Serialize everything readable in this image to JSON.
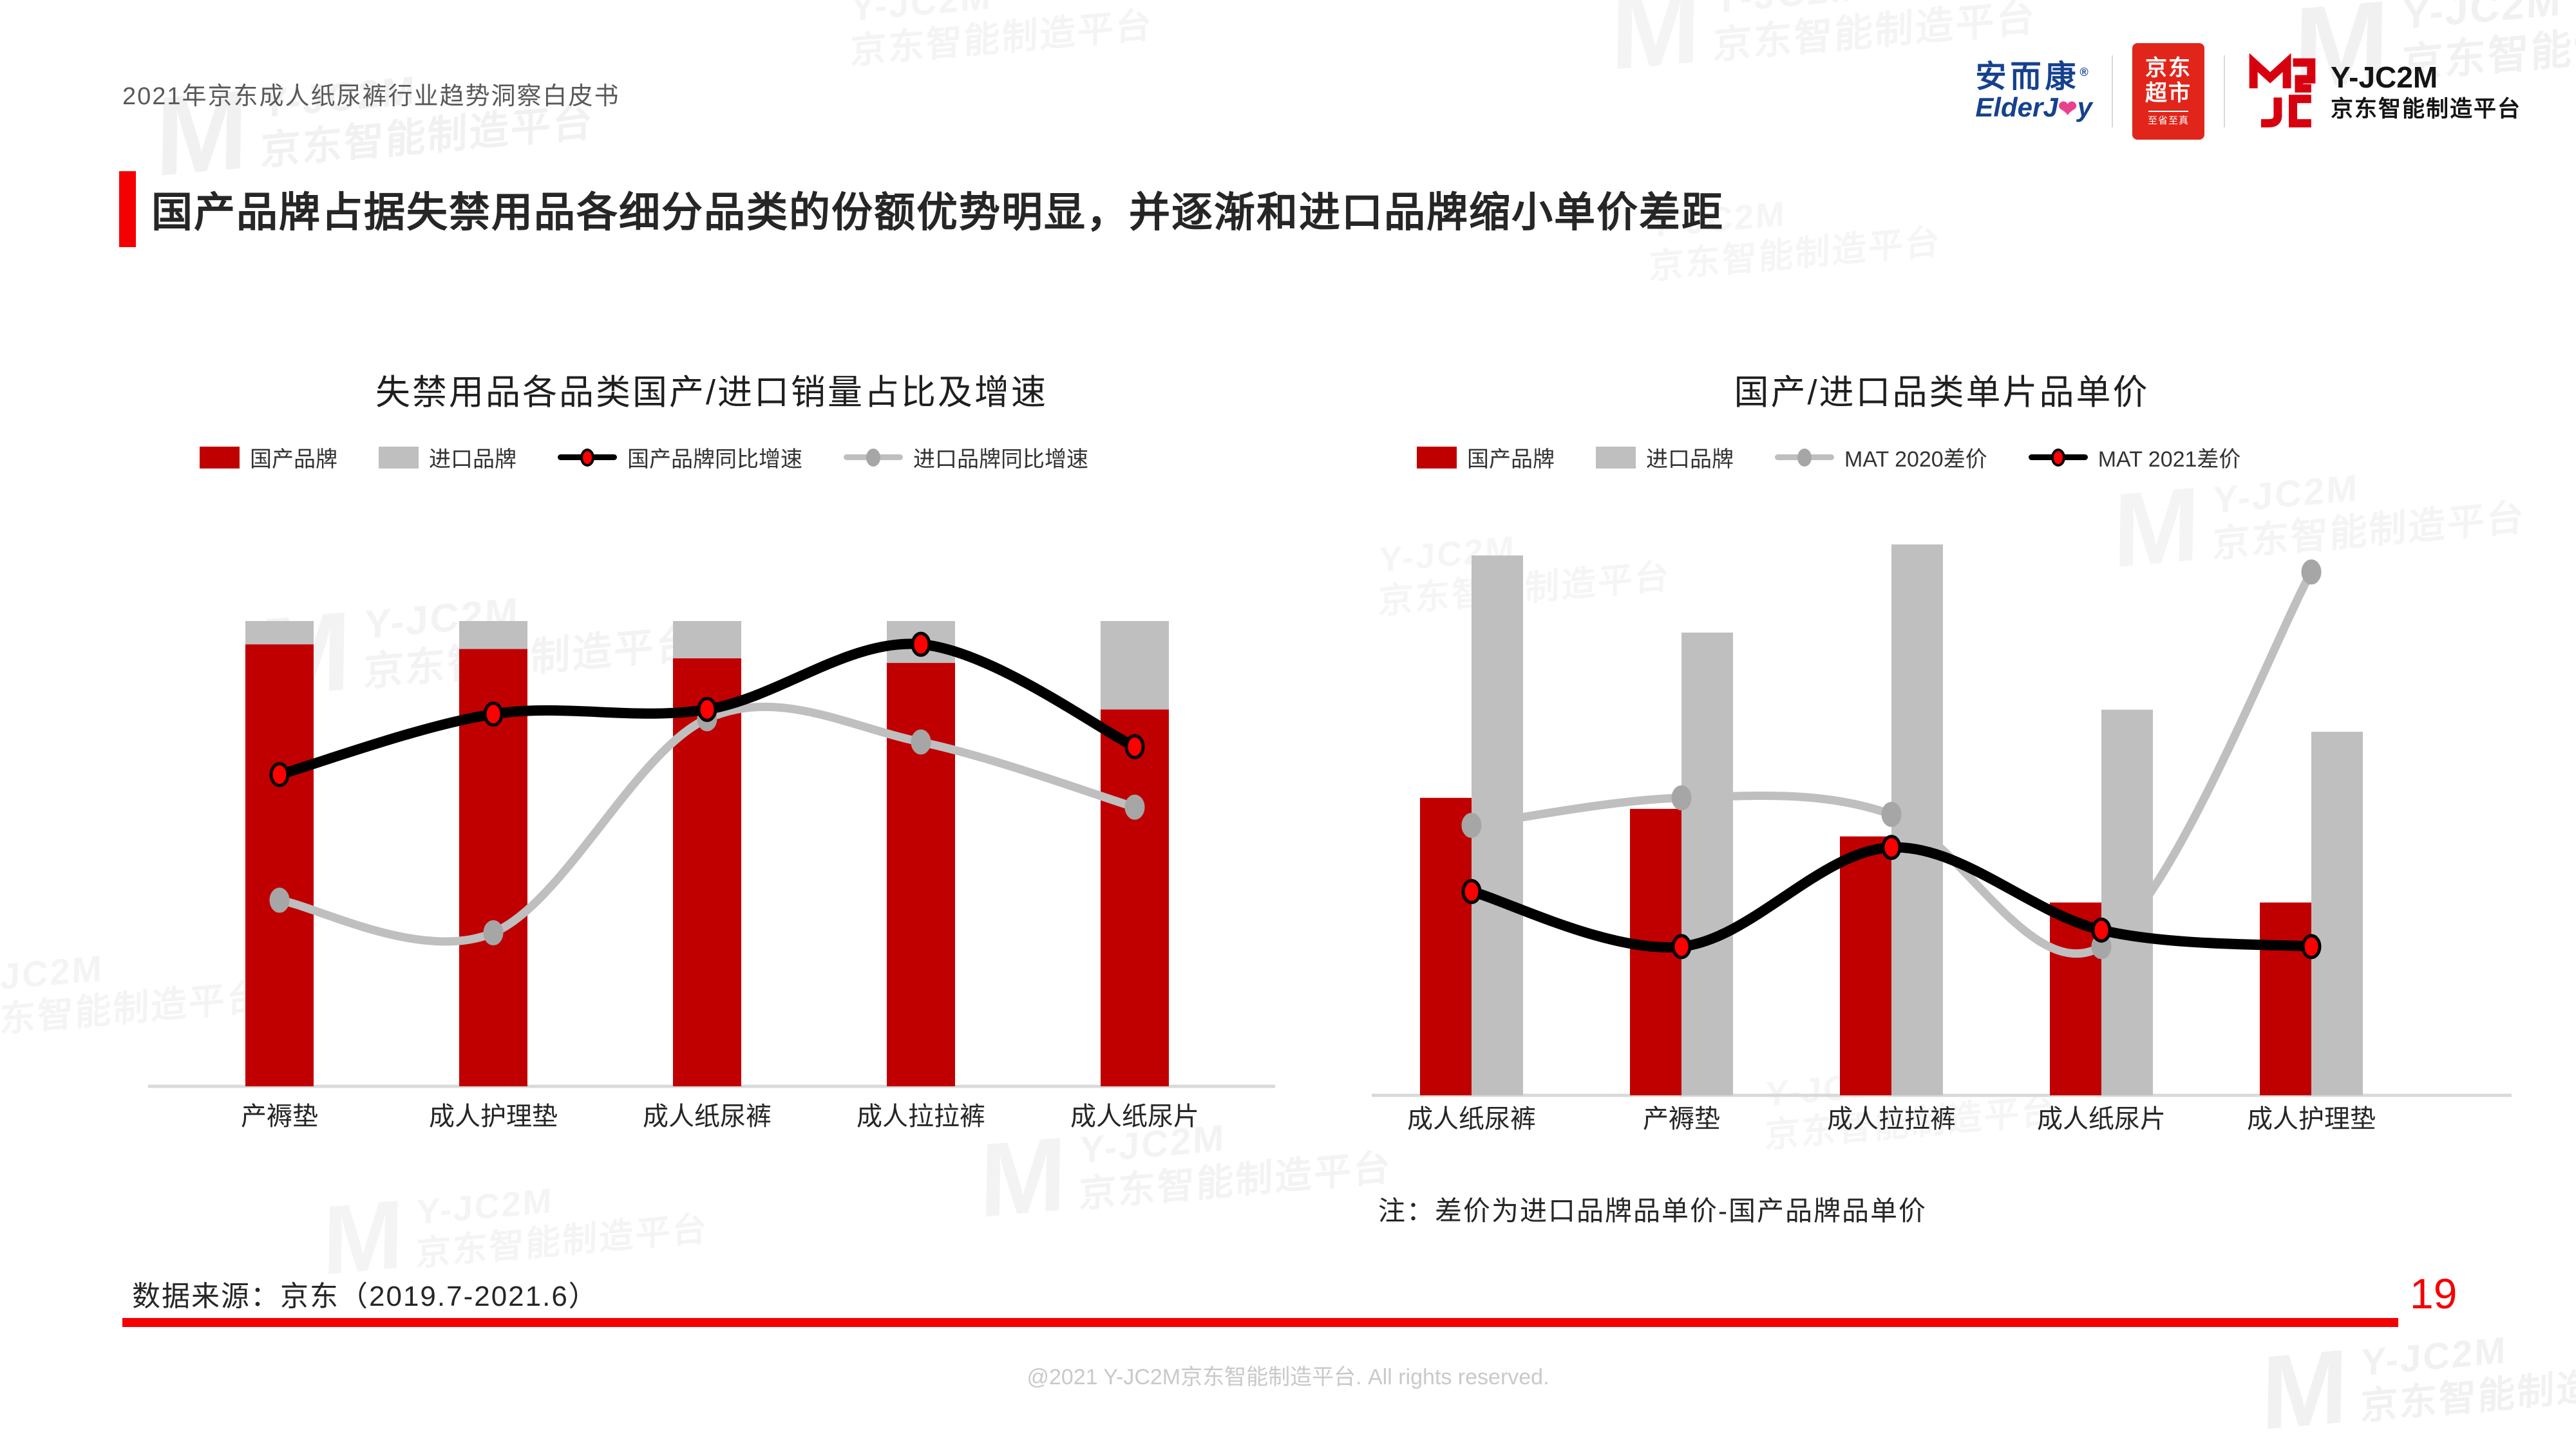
{
  "page": {
    "header_left": "2021年京东成人纸尿裤行业趋势洞察白皮书",
    "title": "国产品牌占据失禁用品各细分品类的份额优势明显，并逐渐和进口品牌缩小单价差距",
    "footer_source": "数据来源：京东（2019.7-2021.6）",
    "page_number": "19",
    "copyright": "@2021 Y-JC2M京东智能制造平台. All rights reserved."
  },
  "watermark": {
    "glyph": "M",
    "line1": "Y-JC2M",
    "line2": "京东智能制造平台"
  },
  "logos": {
    "elderjoy": {
      "cn": "安而康",
      "reg": "®",
      "en_pre": "ElderJ",
      "en_heart": "❤",
      "en_post": "y"
    },
    "jd": {
      "line1": "京东",
      "line2": "超市",
      "sub": "至省至真"
    },
    "yjc2m": {
      "name": "Y-JC2M",
      "sub": "京东智能制造平台"
    }
  },
  "colors": {
    "bar_red": "#c00000",
    "bar_gray": "#bfbfbf",
    "accent_red": "#f40000",
    "jd_red": "#e1251b",
    "elderjoy_blue": "#16418e",
    "heart_pink": "#e9418d",
    "axis_gray": "#d9d9d9",
    "marker_red": "#ff0000",
    "marker_gray": "#a6a6a6"
  },
  "chart_data": [
    {
      "type": "bar",
      "subtype": "stacked-bar-line-combo",
      "title": "失禁用品各品类国产/进口销量占比及增速",
      "categories": [
        "产褥垫",
        "成人护理垫",
        "成人纸尿裤",
        "成人拉拉裤",
        "成人纸尿片"
      ],
      "stacked": true,
      "stack_total_pct": 100,
      "y_axis_labels_visible": false,
      "legend_position": "top",
      "bar_series": [
        {
          "name": "国产品牌",
          "color": "#c00000",
          "values_pct": [
            95,
            94,
            92,
            91,
            81
          ]
        },
        {
          "name": "进口品牌",
          "color": "#bfbfbf",
          "values_pct": [
            5,
            6,
            8,
            9,
            19
          ]
        }
      ],
      "line_series": [
        {
          "name": "国产品牌同比增速",
          "color": "#000000",
          "width": 16,
          "z": 2,
          "marker_fill": "#ff0000",
          "marker_stroke": "#000000",
          "values_rel_pct": [
            67,
            80,
            81,
            95,
            73
          ]
        },
        {
          "name": "进口品牌同比增速",
          "color": "#bfbfbf",
          "width": 13,
          "z": 1,
          "marker_fill": "#a6a6a6",
          "marker_stroke": "#a6a6a6",
          "values_rel_pct": [
            40,
            33,
            79,
            74,
            60
          ]
        }
      ]
    },
    {
      "type": "bar",
      "subtype": "grouped-bar-line-combo",
      "title": "国产/进口品类单片品单价",
      "categories": [
        "成人纸尿裤",
        "产褥垫",
        "成人拉拉裤",
        "成人纸尿片",
        "成人护理垫"
      ],
      "stacked": false,
      "y_axis_labels_visible": false,
      "legend_position": "top",
      "note": "注：差价为进口品牌品单价-国产品牌品单价",
      "bar_series": [
        {
          "name": "国产品牌",
          "color": "#c00000",
          "values_rel_pct": [
            54,
            52,
            47,
            35,
            35
          ]
        },
        {
          "name": "进口品牌",
          "color": "#bfbfbf",
          "values_rel_pct": [
            98,
            84,
            100,
            70,
            66
          ]
        }
      ],
      "line_series": [
        {
          "name": "MAT 2020差价",
          "color": "#bfbfbf",
          "width": 13,
          "z": 1,
          "marker_fill": "#a6a6a6",
          "marker_stroke": "#a6a6a6",
          "values_rel_pct": [
            49,
            54,
            51,
            27,
            95
          ]
        },
        {
          "name": "MAT 2021差价",
          "color": "#000000",
          "width": 16,
          "z": 2,
          "marker_fill": "#ff0000",
          "marker_stroke": "#000000",
          "values_rel_pct": [
            37,
            27,
            45,
            30,
            27
          ]
        }
      ]
    }
  ]
}
